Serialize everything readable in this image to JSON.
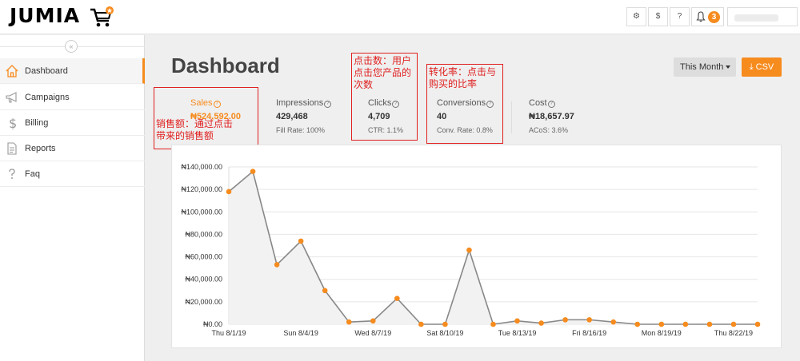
{
  "topbar": {
    "logo": "JUMIA",
    "buttons": [
      {
        "name": "settings",
        "glyph": "⚙"
      },
      {
        "name": "dollar",
        "glyph": "$"
      },
      {
        "name": "help",
        "glyph": "?"
      }
    ],
    "notification_count": "3"
  },
  "sidebar": {
    "collapse_glyph": "«",
    "items": [
      {
        "label": "Dashboard",
        "active": true
      },
      {
        "label": "Campaigns"
      },
      {
        "label": "Billing"
      },
      {
        "label": "Reports"
      },
      {
        "label": "Faq"
      }
    ]
  },
  "header": {
    "title": "Dashboard",
    "period_label": "This Month",
    "csv_label": "⤓ CSV"
  },
  "stats": [
    {
      "label": "Sales",
      "value": "₦524,592.00",
      "sub": ""
    },
    {
      "label": "Impressions",
      "value": "429,468",
      "sub": "Fill Rate: 100%"
    },
    {
      "label": "Clicks",
      "value": "4,709",
      "sub": "CTR: 1.1%"
    },
    {
      "label": "Conversions",
      "value": "40",
      "sub": "Conv. Rate: 0.8%"
    },
    {
      "label": "Cost",
      "value": "₦18,657.97",
      "sub": "ACoS: 3.6%"
    }
  ],
  "annotations": {
    "sales": "销售额：通过点击\n带来的销售额",
    "clicks": "点击数：用户\n点击您产品的\n次数",
    "conversions": "转化率：点击与\n购买的比率"
  },
  "colors": {
    "accent": "#f68b1e",
    "annotation": "#e02020",
    "line": "#888888"
  },
  "chart_data": {
    "type": "area",
    "x": [
      "8/1/19",
      "8/2/19",
      "8/3/19",
      "8/4/19",
      "8/5/19",
      "8/6/19",
      "8/7/19",
      "8/8/19",
      "8/9/19",
      "8/10/19",
      "8/11/19",
      "8/12/19",
      "8/13/19",
      "8/14/19",
      "8/15/19",
      "8/16/19",
      "8/17/19",
      "8/18/19",
      "8/19/19",
      "8/20/19",
      "8/21/19",
      "8/22/19",
      "8/23/19"
    ],
    "values": [
      118000,
      136000,
      53000,
      74000,
      30000,
      2000,
      3000,
      23000,
      0,
      0,
      66000,
      0,
      3000,
      1000,
      4000,
      4000,
      2000,
      0,
      0,
      0,
      0,
      0,
      0
    ],
    "x_tick_labels": [
      "Thu 8/1/19",
      "Sun 8/4/19",
      "Wed 8/7/19",
      "Sat 8/10/19",
      "Tue 8/13/19",
      "Fri 8/16/19",
      "Mon 8/19/19",
      "Thu 8/22/19"
    ],
    "y_tick_labels": [
      "₦0.00",
      "₦20,000.00",
      "₦40,000.00",
      "₦60,000.00",
      "₦80,000.00",
      "₦100,000.00",
      "₦120,000.00",
      "₦140,000.00"
    ],
    "ylim": [
      0,
      140000
    ],
    "grid": true,
    "title": "",
    "xlabel": "",
    "ylabel": ""
  }
}
